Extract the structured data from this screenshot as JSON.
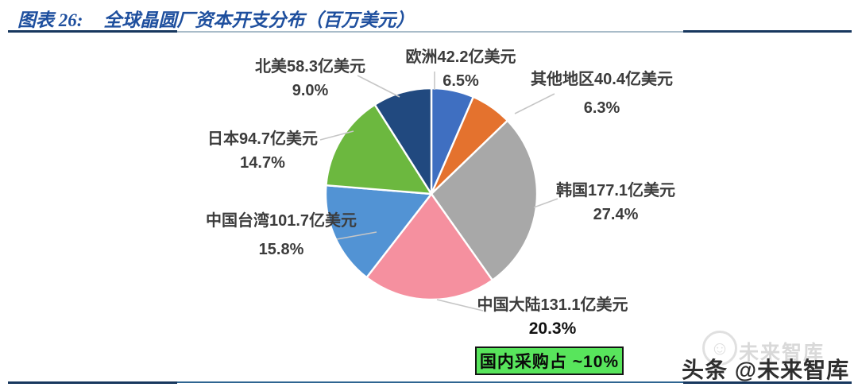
{
  "figure": {
    "label_prefix": "图表 26:",
    "title": "全球晶圆厂资本开支分布（百万美元）"
  },
  "chart_data": {
    "type": "pie",
    "title": "全球晶圆厂资本开支分布（百万美元）",
    "start_angle_deg": 0,
    "direction": "clockwise",
    "total_percent": 100.0,
    "slices": [
      {
        "name": "欧洲",
        "label": "欧洲42.2亿美元",
        "value_billion_usd": 42.2,
        "percent": 6.5,
        "percent_label": "6.5%",
        "color": "#3f6fc1"
      },
      {
        "name": "其他地区",
        "label": "其他地区40.4亿美元",
        "value_billion_usd": 40.4,
        "percent": 6.3,
        "percent_label": "6.3%",
        "color": "#e4722e"
      },
      {
        "name": "韩国",
        "label": "韩国177.1亿美元",
        "value_billion_usd": 177.1,
        "percent": 27.4,
        "percent_label": "27.4%",
        "color": "#a8a8a8"
      },
      {
        "name": "中国大陆",
        "label": "中国大陆131.1亿美元",
        "value_billion_usd": 131.1,
        "percent": 20.3,
        "percent_label": "20.3%",
        "color": "#f5909f"
      },
      {
        "name": "中国台湾",
        "label": "中国台湾101.7亿美元",
        "value_billion_usd": 101.7,
        "percent": 15.8,
        "percent_label": "15.8%",
        "color": "#5293d4"
      },
      {
        "name": "日本",
        "label": "日本94.7亿美元",
        "value_billion_usd": 94.7,
        "percent": 14.7,
        "percent_label": "14.7%",
        "color": "#6cb83f"
      },
      {
        "name": "北美",
        "label": "北美58.3亿美元",
        "value_billion_usd": 58.3,
        "percent": 9.0,
        "percent_label": "9.0%",
        "color": "#21497f"
      }
    ]
  },
  "annotation": {
    "domestic_note": "国内采购占 ~10%",
    "box_color": "#58e55c"
  },
  "watermark": {
    "light_text": "未来智库",
    "light_logo": "☺",
    "dark_text": "头条 @未来智库"
  },
  "colors": {
    "title_blue": "#1e4f9e",
    "rule_dark": "#17375e",
    "rule_light_top": "#a9bcc9",
    "rule_light_bottom": "#2f6591"
  }
}
